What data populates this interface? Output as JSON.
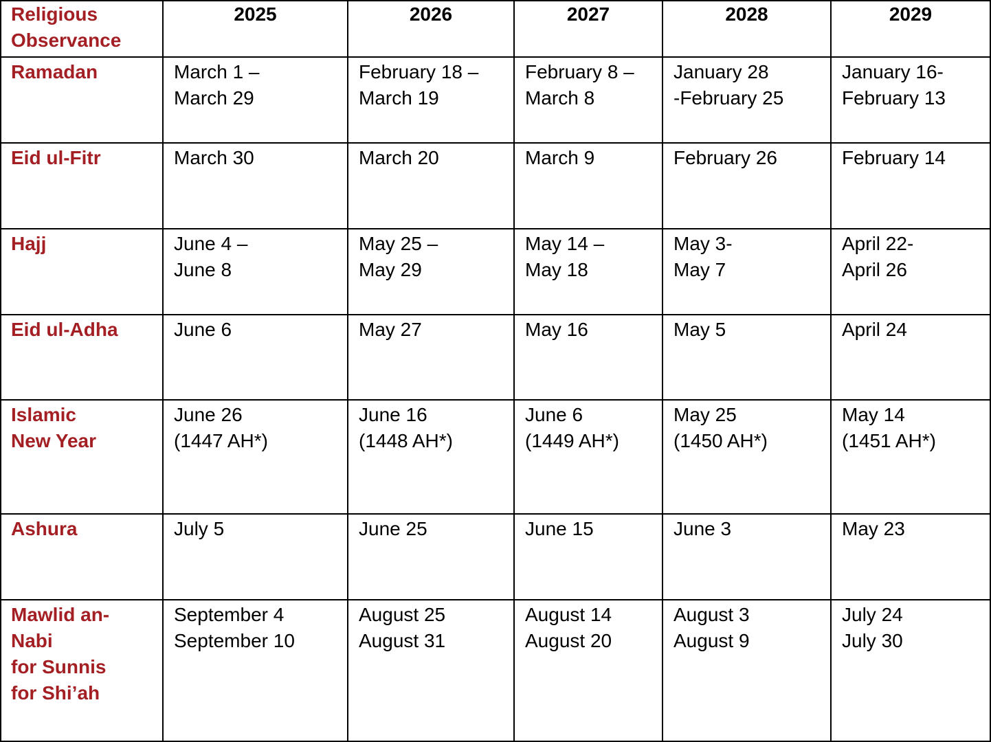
{
  "header": {
    "first_column": [
      "Religious",
      "Observance"
    ],
    "years": [
      "2025",
      "2026",
      "2027",
      "2028",
      "2029"
    ]
  },
  "rows": [
    {
      "name": [
        "Ramadan"
      ],
      "cells": [
        [
          "March 1 –",
          "March 29"
        ],
        [
          "February 18 –",
          "March 19"
        ],
        [
          "February 8 –",
          "March 8"
        ],
        [
          "January 28",
          "-February 25"
        ],
        [
          "January 16-",
          "February 13"
        ]
      ]
    },
    {
      "name": [
        "Eid ul-Fitr"
      ],
      "cells": [
        [
          "March 30"
        ],
        [
          "March 20"
        ],
        [
          "March 9"
        ],
        [
          "February 26"
        ],
        [
          "February 14"
        ]
      ]
    },
    {
      "name": [
        "Hajj"
      ],
      "cells": [
        [
          "June 4 –",
          "June 8"
        ],
        [
          "May 25 –",
          "May 29"
        ],
        [
          "May 14 –",
          "May 18"
        ],
        [
          "May 3-",
          "May 7"
        ],
        [
          "April 22-",
          "April 26"
        ]
      ]
    },
    {
      "name": [
        "Eid ul-Adha"
      ],
      "cells": [
        [
          "June 6"
        ],
        [
          "May 27"
        ],
        [
          "May 16"
        ],
        [
          "May 5"
        ],
        [
          "April 24"
        ]
      ]
    },
    {
      "name": [
        "Islamic",
        "New Year"
      ],
      "cells": [
        [
          "June 26",
          "(1447 AH*)"
        ],
        [
          "June 16",
          "(1448 AH*)"
        ],
        [
          "June 6",
          "(1449 AH*)"
        ],
        [
          "May 25",
          "(1450 AH*)"
        ],
        [
          "May 14",
          "(1451 AH*)"
        ]
      ]
    },
    {
      "name": [
        "Ashura"
      ],
      "cells": [
        [
          "July 5"
        ],
        [
          "June 25"
        ],
        [
          "June 15"
        ],
        [
          "June 3"
        ],
        [
          "May 23"
        ]
      ]
    },
    {
      "name": [
        "Mawlid an-",
        "Nabi",
        "for Sunnis",
        "for Shi’ah"
      ],
      "cells": [
        [
          "September 4",
          "September 10"
        ],
        [
          "August 25",
          "August 31"
        ],
        [
          "August 14",
          "August 20"
        ],
        [
          "August 3",
          "August 9"
        ],
        [
          "July 24",
          "July 30"
        ]
      ]
    }
  ],
  "colors": {
    "observance_text": "#a31f24",
    "border": "#000000"
  }
}
